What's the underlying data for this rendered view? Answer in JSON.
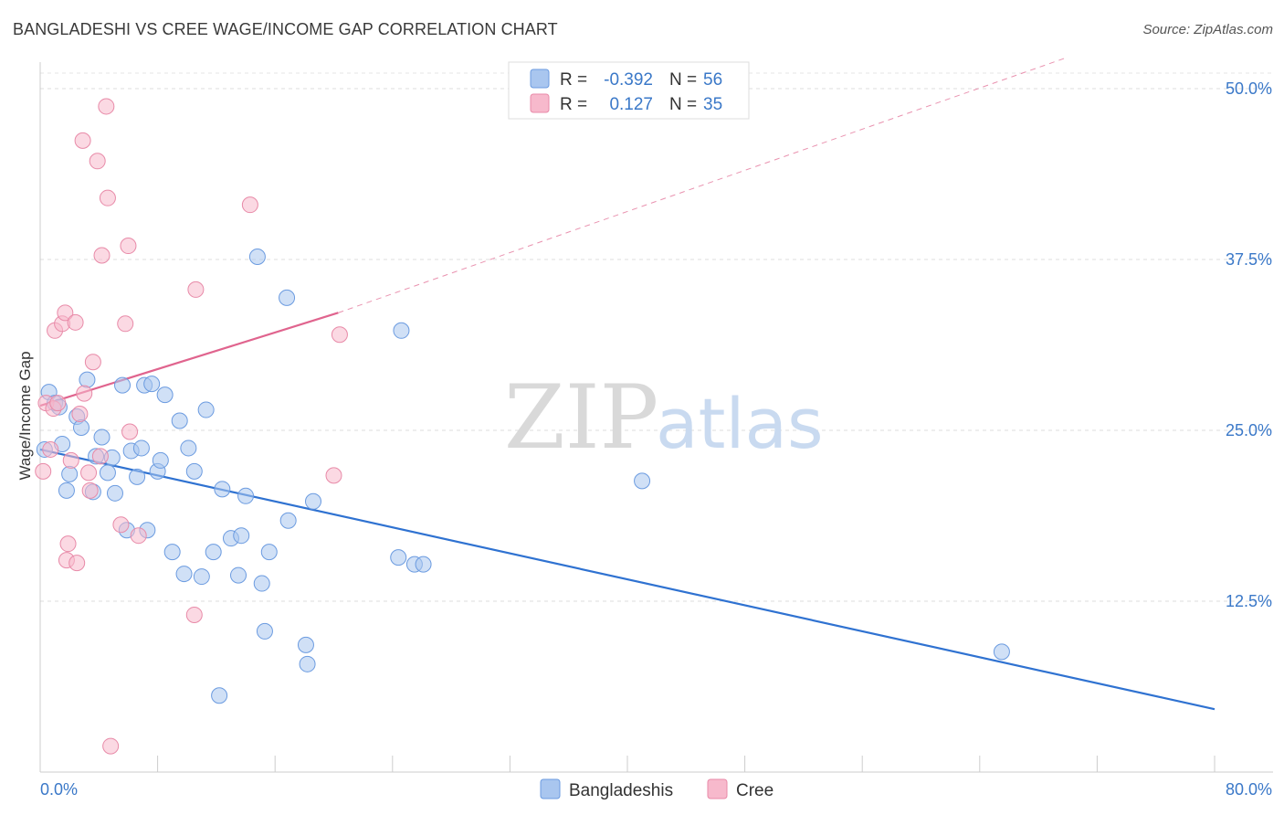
{
  "title": "BANGLADESHI VS CREE WAGE/INCOME GAP CORRELATION CHART",
  "source": "Source: ZipAtlas.com",
  "watermark": {
    "zip": "ZIP",
    "atlas": "atlas"
  },
  "legend": {
    "rows": [
      {
        "r_label": "R =",
        "r_value": "-0.392",
        "n_label": "N =",
        "n_value": "56",
        "color": "#a9c6ef",
        "stroke": "#6b9be0"
      },
      {
        "r_label": "R =",
        "r_value": "0.127",
        "n_label": "N =",
        "n_value": "35",
        "color": "#f7b9cc",
        "stroke": "#e88aa8"
      }
    ]
  },
  "chart_data": {
    "type": "scatter",
    "title": "BANGLADESHI VS CREE WAGE/INCOME GAP CORRELATION CHART",
    "xlabel": "",
    "ylabel": "Wage/Income Gap",
    "xlim": [
      0,
      80
    ],
    "ylim": [
      0,
      50
    ],
    "x_tick_labels": [
      "0.0%",
      "80.0%"
    ],
    "y_ticks": [
      12.5,
      25.0,
      37.5,
      50.0
    ],
    "y_tick_labels": [
      "12.5%",
      "25.0%",
      "37.5%",
      "50.0%"
    ],
    "grid": "horizontal dashed",
    "legend_position": "top-center",
    "series": [
      {
        "name": "Bangladeshis",
        "color": "#a9c6ef",
        "stroke": "#6b9be0",
        "trend_color": "#2f72d1",
        "trend": {
          "x1": 0,
          "y1": 23.6,
          "x2": 80,
          "y2": 4.6,
          "dashed_after": null
        },
        "points": [
          [
            0.3,
            23.6
          ],
          [
            0.6,
            27.8
          ],
          [
            1.0,
            27.0
          ],
          [
            1.3,
            26.7
          ],
          [
            1.5,
            24.0
          ],
          [
            1.8,
            20.6
          ],
          [
            2.0,
            21.8
          ],
          [
            2.5,
            26.0
          ],
          [
            2.8,
            25.2
          ],
          [
            3.2,
            28.7
          ],
          [
            3.6,
            20.5
          ],
          [
            3.8,
            23.1
          ],
          [
            4.2,
            24.5
          ],
          [
            4.6,
            21.9
          ],
          [
            4.9,
            23.0
          ],
          [
            5.1,
            20.4
          ],
          [
            5.6,
            28.3
          ],
          [
            5.9,
            17.7
          ],
          [
            6.2,
            23.5
          ],
          [
            6.6,
            21.6
          ],
          [
            6.9,
            23.7
          ],
          [
            7.1,
            28.3
          ],
          [
            7.3,
            17.7
          ],
          [
            7.6,
            28.4
          ],
          [
            8.0,
            22.0
          ],
          [
            8.2,
            22.8
          ],
          [
            8.5,
            27.6
          ],
          [
            9.0,
            16.1
          ],
          [
            9.5,
            25.7
          ],
          [
            9.8,
            14.5
          ],
          [
            10.1,
            23.7
          ],
          [
            10.5,
            22.0
          ],
          [
            11.0,
            14.3
          ],
          [
            11.3,
            26.5
          ],
          [
            11.8,
            16.1
          ],
          [
            12.2,
            5.6
          ],
          [
            12.4,
            20.7
          ],
          [
            13.0,
            17.1
          ],
          [
            13.5,
            14.4
          ],
          [
            13.7,
            17.3
          ],
          [
            14.0,
            20.2
          ],
          [
            14.8,
            37.7
          ],
          [
            15.1,
            13.8
          ],
          [
            15.3,
            10.3
          ],
          [
            15.6,
            16.1
          ],
          [
            16.8,
            34.7
          ],
          [
            16.9,
            18.4
          ],
          [
            18.1,
            9.3
          ],
          [
            18.2,
            7.9
          ],
          [
            18.6,
            19.8
          ],
          [
            24.4,
            15.7
          ],
          [
            24.6,
            32.3
          ],
          [
            25.5,
            15.2
          ],
          [
            26.1,
            15.2
          ],
          [
            41.0,
            21.3
          ],
          [
            65.5,
            8.8
          ]
        ]
      },
      {
        "name": "Cree",
        "color": "#f7b9cc",
        "stroke": "#e88aa8",
        "trend_color": "#e0648e",
        "trend": {
          "x1": 0,
          "y1": 26.8,
          "x2": 20.3,
          "y2": 33.6,
          "dashed_to_x": 70,
          "dashed_to_y": 52.3
        },
        "points": [
          [
            0.2,
            22.0
          ],
          [
            0.4,
            27.0
          ],
          [
            0.7,
            23.6
          ],
          [
            0.9,
            26.6
          ],
          [
            1.0,
            32.3
          ],
          [
            1.2,
            27.0
          ],
          [
            1.5,
            32.8
          ],
          [
            1.7,
            33.6
          ],
          [
            1.8,
            15.5
          ],
          [
            1.9,
            16.7
          ],
          [
            2.1,
            22.8
          ],
          [
            2.4,
            32.9
          ],
          [
            2.5,
            15.3
          ],
          [
            2.7,
            26.2
          ],
          [
            2.9,
            46.2
          ],
          [
            3.0,
            27.7
          ],
          [
            3.3,
            21.9
          ],
          [
            3.4,
            20.6
          ],
          [
            3.6,
            30.0
          ],
          [
            3.9,
            44.7
          ],
          [
            4.1,
            23.1
          ],
          [
            4.2,
            37.8
          ],
          [
            4.5,
            48.7
          ],
          [
            4.6,
            42.0
          ],
          [
            4.8,
            1.9
          ],
          [
            5.5,
            18.1
          ],
          [
            5.8,
            32.8
          ],
          [
            6.0,
            38.5
          ],
          [
            6.1,
            24.9
          ],
          [
            6.7,
            17.3
          ],
          [
            10.5,
            11.5
          ],
          [
            10.6,
            35.3
          ],
          [
            14.3,
            41.5
          ],
          [
            20.4,
            32.0
          ],
          [
            20.0,
            21.7
          ]
        ]
      }
    ]
  },
  "bottom_legend": [
    {
      "label": "Bangladeshis",
      "color": "#a9c6ef",
      "stroke": "#6b9be0"
    },
    {
      "label": "Cree",
      "color": "#f7b9cc",
      "stroke": "#e88aa8"
    }
  ]
}
